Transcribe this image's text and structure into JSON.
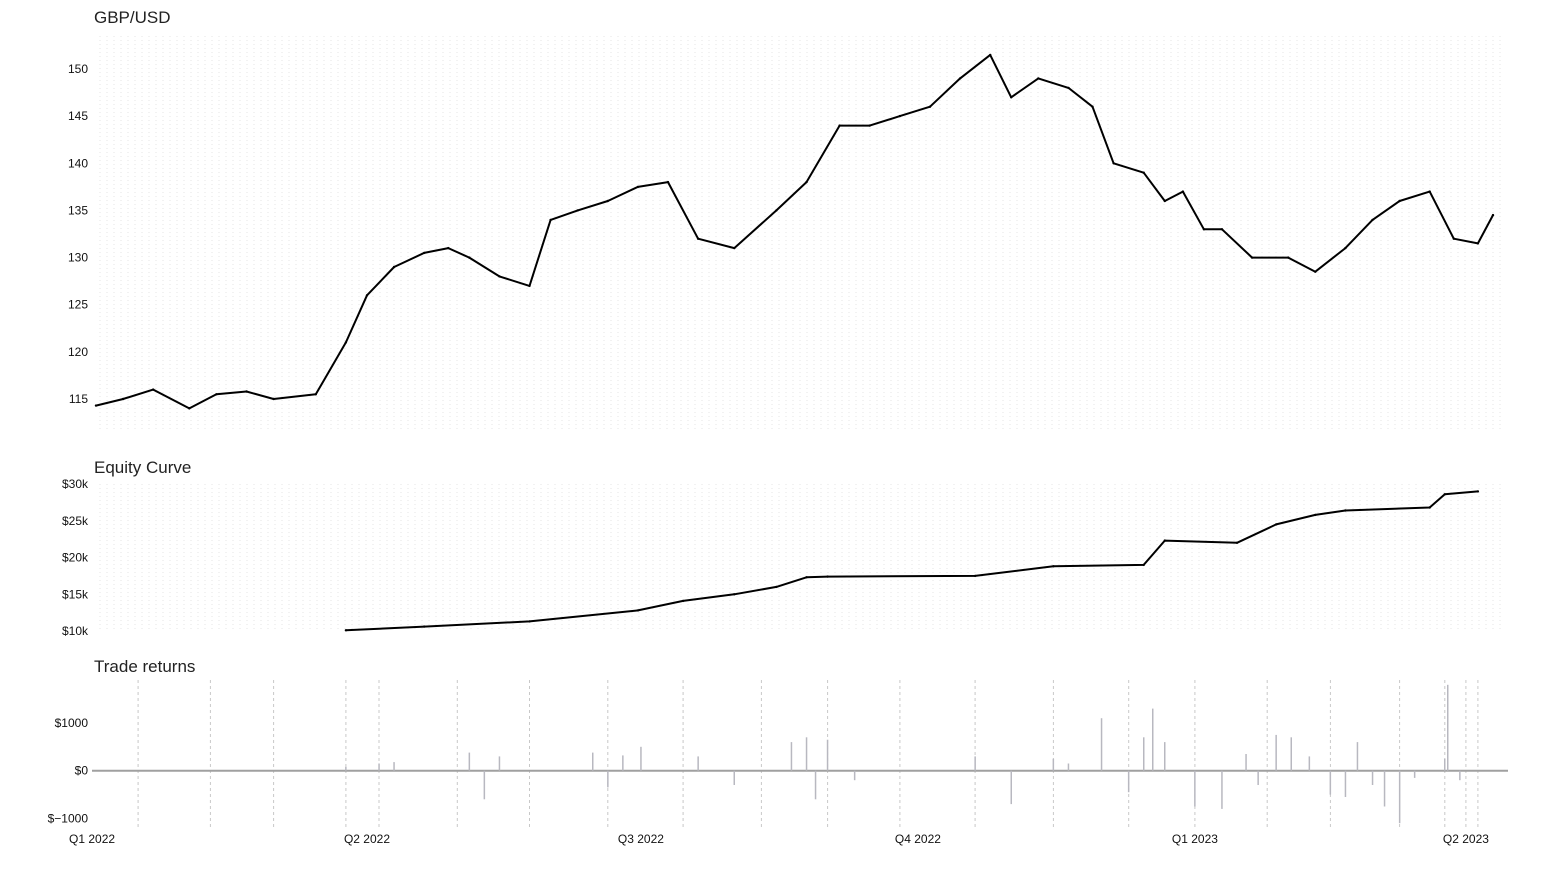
{
  "chart_data": [
    {
      "type": "line",
      "title": "GBP/USD",
      "y_ticks": [
        "115",
        "120",
        "125",
        "130",
        "135",
        "140",
        "145",
        "150"
      ],
      "y_tick_values": [
        115,
        120,
        125,
        130,
        135,
        140,
        145,
        150
      ],
      "ylim": [
        111.5,
        153.5
      ],
      "xlim": [
        "2022-01-01",
        "2023-04-14"
      ],
      "grid": true,
      "series": [
        {
          "x": [
            "2022-01-01",
            "2022-01-10",
            "2022-01-20",
            "2022-02-01",
            "2022-02-10",
            "2022-02-20",
            "2022-03-01",
            "2022-03-15",
            "2022-03-25",
            "2022-04-01",
            "2022-04-10",
            "2022-04-20",
            "2022-04-28",
            "2022-05-05",
            "2022-05-15",
            "2022-05-25",
            "2022-06-01",
            "2022-06-10",
            "2022-06-20",
            "2022-06-30",
            "2022-07-10",
            "2022-07-20",
            "2022-08-01",
            "2022-08-15",
            "2022-08-25",
            "2022-09-05",
            "2022-09-15",
            "2022-09-25",
            "2022-10-05",
            "2022-10-15",
            "2022-10-25",
            "2022-11-01",
            "2022-11-10",
            "2022-11-20",
            "2022-11-28",
            "2022-12-05",
            "2022-12-15",
            "2022-12-22",
            "2022-12-28",
            "2023-01-04",
            "2023-01-10",
            "2023-01-20",
            "2023-02-01",
            "2023-02-10",
            "2023-02-20",
            "2023-03-01",
            "2023-03-10",
            "2023-03-20",
            "2023-03-28",
            "2023-04-05",
            "2023-04-10"
          ],
          "values": [
            114.3,
            115.0,
            116.0,
            114.0,
            115.5,
            115.8,
            115.0,
            115.5,
            121.0,
            126.0,
            129.0,
            130.5,
            131.0,
            130.0,
            128.0,
            127.0,
            134.0,
            135.0,
            136.0,
            137.5,
            138.0,
            132.0,
            131.0,
            135.0,
            138.0,
            144.0,
            144.0,
            145.0,
            146.0,
            149.0,
            151.5,
            147.0,
            149.0,
            148.0,
            146.0,
            140.0,
            139.0,
            136.0,
            137.0,
            133.0,
            133.0,
            130.0,
            130.0,
            128.5,
            131.0,
            134.0,
            136.0,
            137.0,
            132.0,
            131.5,
            134.5
          ]
        }
      ]
    },
    {
      "type": "line",
      "title": "Equity Curve",
      "y_ticks": [
        "$10k",
        "$15k",
        "$20k",
        "$25k",
        "$30k"
      ],
      "y_tick_values": [
        10000,
        15000,
        20000,
        25000,
        30000
      ],
      "ylim": [
        10000,
        30000
      ],
      "xlim": [
        "2022-01-01",
        "2023-04-14"
      ],
      "grid": true,
      "series": [
        {
          "x": [
            "2022-03-25",
            "2022-04-20",
            "2022-05-25",
            "2022-06-30",
            "2022-07-15",
            "2022-08-01",
            "2022-08-15",
            "2022-08-25",
            "2022-09-01",
            "2022-10-20",
            "2022-11-15",
            "2022-12-15",
            "2022-12-22",
            "2023-01-15",
            "2023-01-28",
            "2023-02-10",
            "2023-02-20",
            "2023-03-20",
            "2023-03-25",
            "2023-04-05"
          ],
          "values": [
            10100,
            10600,
            11300,
            12800,
            14100,
            15000,
            16000,
            17300,
            17400,
            17500,
            18800,
            19000,
            22300,
            22000,
            24500,
            25800,
            26400,
            26800,
            28600,
            29000
          ]
        }
      ]
    },
    {
      "type": "bar",
      "title": "Trade returns",
      "y_ticks": [
        "$1000",
        "$0",
        "$−1000"
      ],
      "y_tick_values": [
        1000,
        0,
        -1000
      ],
      "ylim": [
        -1200,
        1900
      ],
      "xlim": [
        "2022-01-01",
        "2023-04-14"
      ],
      "x_ticks": [
        "Q1 2022",
        "Q2 2022",
        "Q3 2022",
        "Q4 2022",
        "Q1 2023",
        "Q2 2023"
      ],
      "x_tick_values": [
        "2022-01-01",
        "2022-04-01",
        "2022-07-01",
        "2022-10-01",
        "2023-01-01",
        "2023-04-01"
      ],
      "series": [
        {
          "x": [
            "2022-03-25",
            "2022-04-05",
            "2022-04-10",
            "2022-05-05",
            "2022-05-10",
            "2022-05-15",
            "2022-06-15",
            "2022-06-20",
            "2022-06-25",
            "2022-07-01",
            "2022-07-20",
            "2022-08-01",
            "2022-08-20",
            "2022-08-25",
            "2022-08-28",
            "2022-09-01",
            "2022-09-10",
            "2022-10-20",
            "2022-11-01",
            "2022-11-15",
            "2022-11-20",
            "2022-12-01",
            "2022-12-10",
            "2022-12-15",
            "2022-12-18",
            "2022-12-22",
            "2023-01-01",
            "2023-01-10",
            "2023-01-18",
            "2023-01-22",
            "2023-01-28",
            "2023-02-02",
            "2023-02-08",
            "2023-02-15",
            "2023-02-20",
            "2023-02-24",
            "2023-03-01",
            "2023-03-05",
            "2023-03-10",
            "2023-03-15",
            "2023-03-25",
            "2023-03-26",
            "2023-03-30"
          ],
          "values": [
            80,
            150,
            180,
            380,
            -600,
            300,
            380,
            -350,
            320,
            500,
            300,
            -300,
            600,
            700,
            -600,
            650,
            -200,
            300,
            -700,
            250,
            150,
            1100,
            -450,
            700,
            1300,
            600,
            -750,
            -800,
            350,
            -300,
            750,
            700,
            300,
            -500,
            -550,
            600,
            -300,
            -750,
            -1100,
            -150,
            250,
            1800,
            -200
          ]
        }
      ]
    }
  ]
}
